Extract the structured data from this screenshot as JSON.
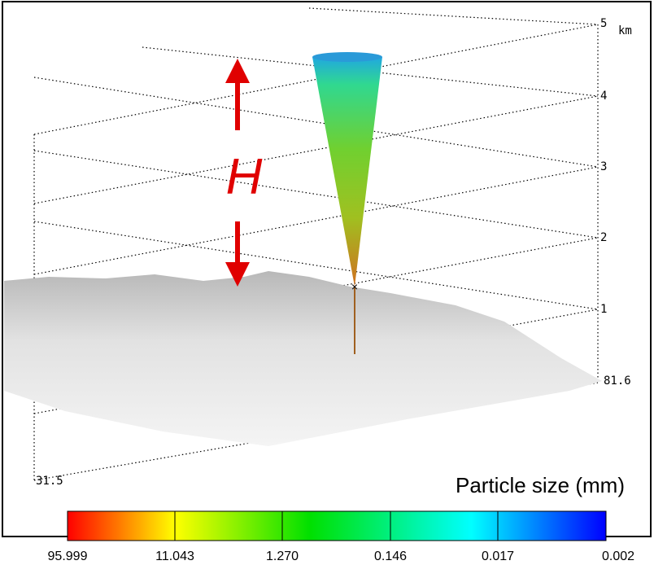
{
  "axis": {
    "unit": "km",
    "height_labels": [
      "5",
      "4",
      "3",
      "2",
      "1"
    ],
    "corner_labels": [
      "81.6",
      "31.5"
    ]
  },
  "annotation": "H",
  "colorbar": {
    "title": "Particle size (mm)",
    "labels": [
      "95.999",
      "11.043",
      "1.270",
      "0.146",
      "0.017",
      "0.002"
    ]
  }
}
